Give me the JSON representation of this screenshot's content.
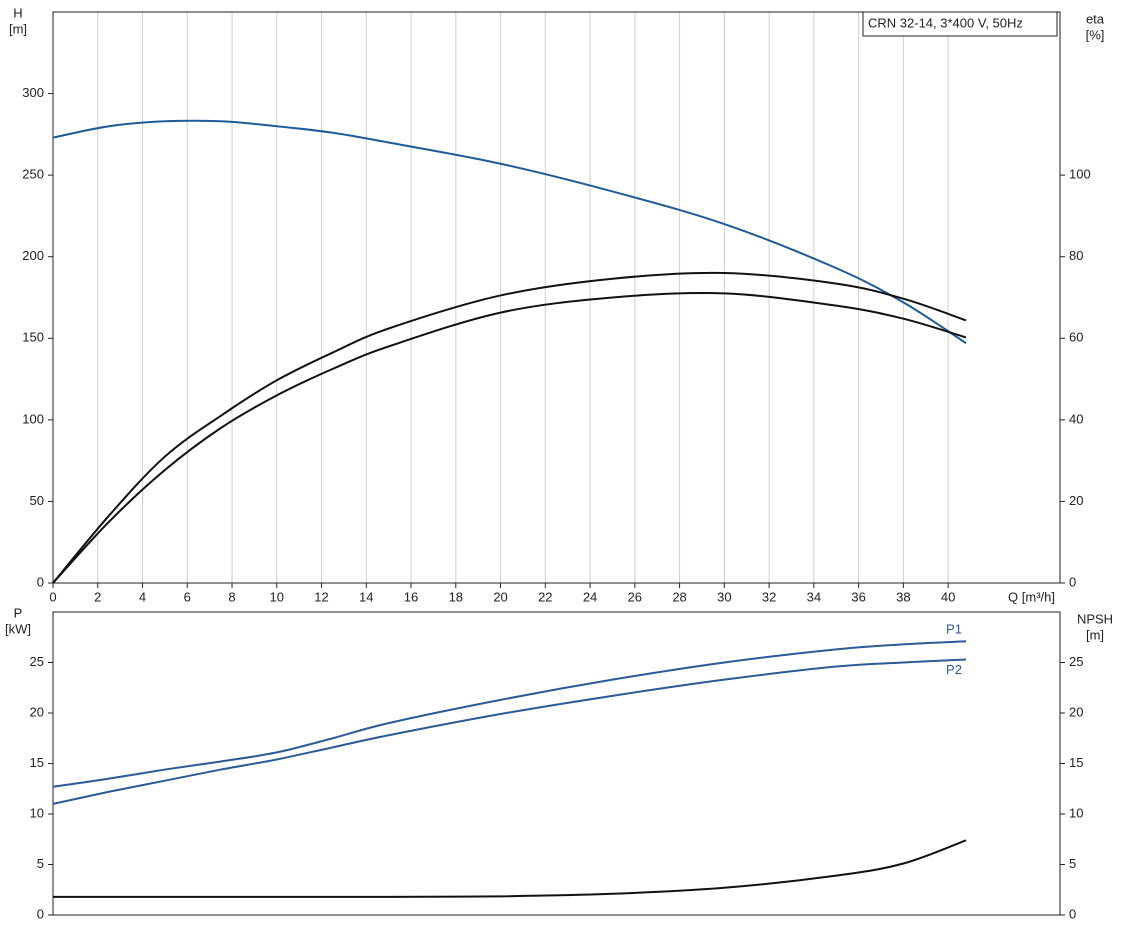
{
  "chart_data": [
    {
      "type": "line",
      "xlabel": "Q [m³/h]",
      "ylabel": [
        "H",
        "[m]"
      ],
      "y2label": [
        "eta",
        "[%]"
      ],
      "annotation": "CRN 32-14, 3*400 V, 50Hz",
      "x": [
        0,
        2.5,
        5,
        7.5,
        10,
        12.5,
        15,
        20,
        25,
        30,
        35,
        38,
        40.8
      ],
      "xlim": [
        0,
        45
      ],
      "xticks": [
        0,
        2,
        4,
        6,
        8,
        10,
        12,
        14,
        16,
        18,
        20,
        22,
        24,
        26,
        28,
        30,
        32,
        34,
        36,
        38,
        40
      ],
      "ylim": [
        0,
        350
      ],
      "yticks": [
        0,
        50,
        100,
        150,
        200,
        250,
        300
      ],
      "y2lim": [
        0,
        140
      ],
      "y2ticks": [
        0,
        20,
        40,
        60,
        80,
        100
      ],
      "grid": "x",
      "series": [
        {
          "color": "#1f5b99",
          "values": [
            273,
            280,
            283,
            283,
            280,
            276,
            270,
            257,
            240,
            220,
            193,
            172,
            147
          ]
        },
        {
          "color": "#111111",
          "axis": "y2",
          "values": [
            0,
            16.5,
            31,
            41,
            49.7,
            56.5,
            62.4,
            70.5,
            74.6,
            76,
            73.4,
            69.7,
            64.4
          ]
        },
        {
          "color": "#111111",
          "axis": "y2",
          "values": [
            0,
            15,
            27.7,
            38,
            46,
            52.5,
            58,
            66.3,
            70,
            71,
            68,
            64.8,
            60.2
          ]
        }
      ]
    },
    {
      "type": "line",
      "ylabel": [
        "P",
        "[kW]"
      ],
      "y2label": [
        "NPSH",
        "[m]"
      ],
      "x": [
        0,
        2.5,
        5,
        7.5,
        10,
        12.5,
        15,
        20,
        25,
        30,
        35,
        38,
        40.8
      ],
      "xlim": [
        0,
        45
      ],
      "ylim": [
        0,
        30
      ],
      "yticks": [
        0,
        5,
        10,
        15,
        20,
        25
      ],
      "y2lim": [
        0,
        30
      ],
      "y2ticks": [
        0,
        5,
        10,
        15,
        20,
        25
      ],
      "grid": "x",
      "series": [
        {
          "name": "P1",
          "color": "#2a5b96",
          "values": [
            12.7,
            13.5,
            14.4,
            15.2,
            16.1,
            17.5,
            19.0,
            21.3,
            23.3,
            25.0,
            26.3,
            26.8,
            27.1
          ]
        },
        {
          "name": "P2",
          "color": "#2a5b96",
          "values": [
            11.0,
            12.2,
            13.3,
            14.4,
            15.4,
            16.6,
            17.8,
            19.9,
            21.7,
            23.3,
            24.6,
            25.0,
            25.3
          ]
        },
        {
          "color": "#111111",
          "axis": "y2",
          "values": [
            1.8,
            1.8,
            1.8,
            1.8,
            1.8,
            1.8,
            1.8,
            1.85,
            2.1,
            2.7,
            3.9,
            5.1,
            7.4
          ]
        }
      ]
    }
  ]
}
